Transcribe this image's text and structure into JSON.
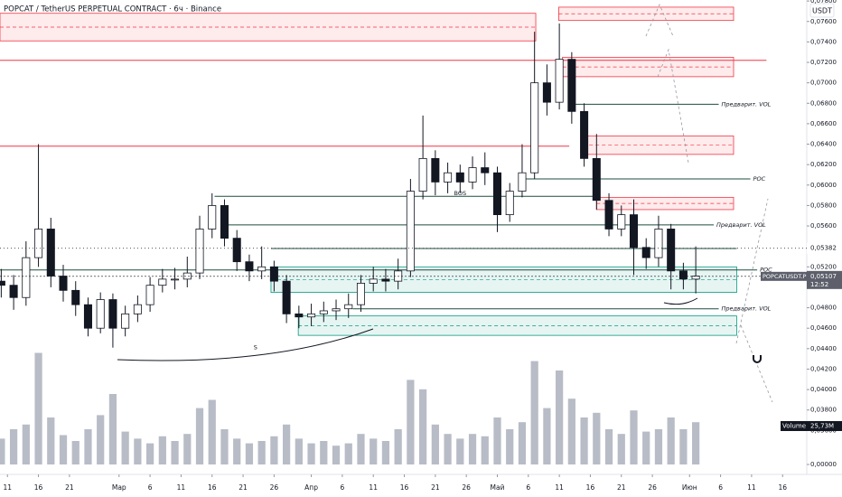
{
  "chart_data": {
    "type": "candlestick",
    "title": "POPCAT / TetherUS PERPETUAL CONTRACT · 6ч · Binance",
    "currency": "USDT",
    "x": [
      -1,
      1,
      3,
      5,
      7,
      9,
      11,
      13,
      15,
      17,
      19,
      21,
      23,
      25,
      27,
      29,
      31,
      33,
      35,
      37,
      39,
      41,
      43,
      45,
      47,
      49,
      51,
      53,
      55,
      57,
      59,
      61,
      63,
      65,
      67,
      69,
      71,
      73,
      75,
      77,
      79,
      81,
      83,
      85,
      87,
      89,
      91,
      93,
      95,
      97,
      99,
      101,
      103,
      105,
      107,
      109,
      111
    ],
    "open": [
      0.0506,
      0.0502,
      0.049,
      0.0529,
      0.0557,
      0.0511,
      0.0497,
      0.0483,
      0.046,
      0.0488,
      0.046,
      0.0474,
      0.0483,
      0.0502,
      0.0508,
      0.0508,
      0.0514,
      0.0557,
      0.058,
      0.0548,
      0.0525,
      0.0516,
      0.052,
      0.0506,
      0.0474,
      0.0471,
      0.0474,
      0.0477,
      0.0479,
      0.0483,
      0.0504,
      0.0508,
      0.0506,
      0.0516,
      0.0594,
      0.0626,
      0.0603,
      0.0612,
      0.0603,
      0.0617,
      0.0612,
      0.0571,
      0.0594,
      0.0612,
      0.07,
      0.0681,
      0.0723,
      0.0672,
      0.0626,
      0.0585,
      0.0557,
      0.0571,
      0.0539,
      0.0529,
      0.0557,
      0.0516,
      0.0508
    ],
    "high": [
      0.0518,
      0.0512,
      0.0545,
      0.064,
      0.0568,
      0.0522,
      0.0506,
      0.049,
      0.0495,
      0.0494,
      0.0482,
      0.0492,
      0.051,
      0.0518,
      0.0519,
      0.053,
      0.057,
      0.0592,
      0.0586,
      0.0556,
      0.0532,
      0.054,
      0.0526,
      0.0512,
      0.0482,
      0.0484,
      0.0486,
      0.0488,
      0.0494,
      0.0512,
      0.052,
      0.0518,
      0.0528,
      0.0606,
      0.0668,
      0.0634,
      0.0622,
      0.062,
      0.0628,
      0.0632,
      0.0618,
      0.0602,
      0.064,
      0.075,
      0.0718,
      0.0758,
      0.073,
      0.068,
      0.065,
      0.0592,
      0.058,
      0.0586,
      0.0548,
      0.057,
      0.0562,
      0.0524,
      0.054
    ],
    "low": [
      0.049,
      0.0478,
      0.0482,
      0.052,
      0.05,
      0.0486,
      0.0472,
      0.0452,
      0.0455,
      0.0441,
      0.0452,
      0.0466,
      0.0476,
      0.0495,
      0.0498,
      0.05,
      0.0508,
      0.0548,
      0.054,
      0.0516,
      0.0506,
      0.0508,
      0.0496,
      0.0465,
      0.046,
      0.0462,
      0.0466,
      0.0468,
      0.047,
      0.0476,
      0.0496,
      0.0496,
      0.0498,
      0.051,
      0.0586,
      0.059,
      0.0592,
      0.0592,
      0.0596,
      0.06,
      0.0554,
      0.0564,
      0.0588,
      0.0606,
      0.0668,
      0.0674,
      0.066,
      0.0618,
      0.0576,
      0.055,
      0.055,
      0.0512,
      0.0518,
      0.052,
      0.0498,
      0.0498,
      0.0494
    ],
    "close": [
      0.0502,
      0.049,
      0.0529,
      0.0557,
      0.0511,
      0.0497,
      0.0483,
      0.046,
      0.0488,
      0.046,
      0.0474,
      0.0483,
      0.0502,
      0.0508,
      0.0508,
      0.0514,
      0.0557,
      0.058,
      0.0548,
      0.0525,
      0.0516,
      0.052,
      0.0506,
      0.0474,
      0.0471,
      0.0474,
      0.0477,
      0.0479,
      0.0483,
      0.0504,
      0.0508,
      0.0506,
      0.0516,
      0.0594,
      0.0626,
      0.0603,
      0.0612,
      0.0603,
      0.0617,
      0.0612,
      0.0571,
      0.0594,
      0.0612,
      0.07,
      0.0681,
      0.0723,
      0.0672,
      0.0626,
      0.0585,
      0.0557,
      0.0571,
      0.0539,
      0.0529,
      0.0557,
      0.0516,
      0.0508,
      0.0511
    ],
    "volume": [
      22,
      30,
      34,
      95,
      40,
      25,
      20,
      30,
      42,
      60,
      28,
      22,
      18,
      24,
      20,
      26,
      48,
      55,
      30,
      22,
      18,
      20,
      24,
      34,
      22,
      18,
      20,
      16,
      18,
      26,
      22,
      20,
      30,
      72,
      64,
      34,
      26,
      22,
      26,
      24,
      40,
      30,
      36,
      88,
      48,
      80,
      56,
      40,
      44,
      30,
      26,
      46,
      28,
      30,
      40,
      30,
      36
    ],
    "up_color": "#ffffff",
    "down_color": "#131722",
    "volume_color": "#b8bcc6",
    "xlim": [
      -1.2,
      128.9
    ],
    "xticks": [
      {
        "value": 0,
        "label": "11"
      },
      {
        "value": 5,
        "label": "16"
      },
      {
        "value": 10,
        "label": "21"
      },
      {
        "value": 18,
        "label": "Мар"
      },
      {
        "value": 23,
        "label": "6"
      },
      {
        "value": 28,
        "label": "11"
      },
      {
        "value": 33,
        "label": "16"
      },
      {
        "value": 38,
        "label": "21"
      },
      {
        "value": 43,
        "label": "26"
      },
      {
        "value": 49,
        "label": "Апр"
      },
      {
        "value": 54,
        "label": "6"
      },
      {
        "value": 59,
        "label": "11"
      },
      {
        "value": 64,
        "label": "16"
      },
      {
        "value": 69,
        "label": "21"
      },
      {
        "value": 74,
        "label": "26"
      },
      {
        "value": 79,
        "label": "Май"
      },
      {
        "value": 84,
        "label": "6"
      },
      {
        "value": 89,
        "label": "11"
      },
      {
        "value": 94,
        "label": "16"
      },
      {
        "value": 99,
        "label": "21"
      },
      {
        "value": 104,
        "label": "26"
      },
      {
        "value": 110,
        "label": "Июн"
      },
      {
        "value": 115,
        "label": "6"
      },
      {
        "value": 120,
        "label": "11"
      },
      {
        "value": 125,
        "label": "16"
      }
    ],
    "ylim": [
      0.0317,
      0.0781
    ],
    "yticks": [
      {
        "value": 0.078,
        "label": "0,07800"
      },
      {
        "value": 0.076,
        "label": "0,07600"
      },
      {
        "value": 0.074,
        "label": "0,07400"
      },
      {
        "value": 0.072,
        "label": "0,07200"
      },
      {
        "value": 0.07,
        "label": "0,07000"
      },
      {
        "value": 0.068,
        "label": "0,06800"
      },
      {
        "value": 0.066,
        "label": "0,06600"
      },
      {
        "value": 0.064,
        "label": "0,06400"
      },
      {
        "value": 0.062,
        "label": "0,06200"
      },
      {
        "value": 0.06,
        "label": "0,06000"
      },
      {
        "value": 0.058,
        "label": "0,05800"
      },
      {
        "value": 0.056,
        "label": "0,05600"
      },
      {
        "value": 0.052,
        "label": "0,05200"
      },
      {
        "value": 0.048,
        "label": "0,04800"
      },
      {
        "value": 0.046,
        "label": "0,04600"
      },
      {
        "value": 0.044,
        "label": "0,04400"
      },
      {
        "value": 0.042,
        "label": "0,04200"
      },
      {
        "value": 0.04,
        "label": "0,04000"
      },
      {
        "value": 0.038,
        "label": "0,03800"
      },
      {
        "value": 0.036,
        "label": "0,03600"
      }
    ],
    "volume_lim": [
      0,
      100
    ],
    "volume_ticks": [
      {
        "value": 0,
        "label": "0,00000"
      }
    ],
    "last_price": {
      "value": 0.05382,
      "label": "0,05382"
    },
    "current_price": {
      "value": 0.05107,
      "label": "0,05107",
      "symbol": "POPCATUSDT.P",
      "countdown": "12:52"
    },
    "volume_label": {
      "name": "Volume",
      "value": "25,73M"
    },
    "zones": [
      {
        "x0": -1.2,
        "x1": 85.2,
        "top": 0.0768,
        "bottom": 0.0741,
        "color": "#f23645"
      },
      {
        "x0": 88.9,
        "x1": 117.1,
        "top": 0.0774,
        "bottom": 0.0761,
        "color": "#f23645"
      },
      {
        "x0": 89.5,
        "x1": 117.1,
        "top": 0.0725,
        "bottom": 0.0706,
        "color": "#f23645"
      },
      {
        "x0": 92.8,
        "x1": 117.1,
        "top": 0.0648,
        "bottom": 0.063,
        "color": "#f23645"
      },
      {
        "x0": 95,
        "x1": 117.1,
        "top": 0.0588,
        "bottom": 0.0576,
        "color": "#f23645"
      },
      {
        "x0": 42.5,
        "x1": 117.6,
        "top": 0.052,
        "bottom": 0.0495,
        "color": "#089981"
      },
      {
        "x0": 46.9,
        "x1": 117.6,
        "top": 0.0472,
        "bottom": 0.0453,
        "color": "#089981"
      }
    ],
    "levels": [
      {
        "price": 0.0722,
        "x0": -1.2,
        "x1": 122.4,
        "color": "#f23645"
      },
      {
        "price": 0.0638,
        "x0": -1.2,
        "x1": 90.6,
        "color": "#f23645"
      },
      {
        "price": 0.0679,
        "x0": 90.6,
        "x1": 114.7,
        "color": "#1e4d3f",
        "label": "Предварит. VOL"
      },
      {
        "price": 0.0606,
        "x0": 83.3,
        "x1": 119.8,
        "color": "#1e4d3f",
        "label": "POC"
      },
      {
        "price": 0.0589,
        "x0": 33.4,
        "x1": 95,
        "color": "#1e4d3f"
      },
      {
        "price": 0.0561,
        "x0": 35.3,
        "x1": 113.9,
        "color": "#1e4d3f",
        "label": "Предварит. VOL"
      },
      {
        "price": 0.0538,
        "x0": 42.5,
        "x1": 117.6,
        "color": "#1e4d3f"
      },
      {
        "price": 0.0517,
        "x0": -1.2,
        "x1": 120.9,
        "color": "#1e4d3f",
        "label": "POC"
      },
      {
        "price": 0.0479,
        "x0": 55.7,
        "x1": 114.7,
        "color": "#1e4d3f",
        "label": "Предварит. VOL"
      }
    ],
    "annotations": [
      {
        "text": "BOS",
        "x": 73,
        "price": 0.0592
      },
      {
        "text": "S",
        "x": 40,
        "price": 0.0441
      }
    ]
  }
}
